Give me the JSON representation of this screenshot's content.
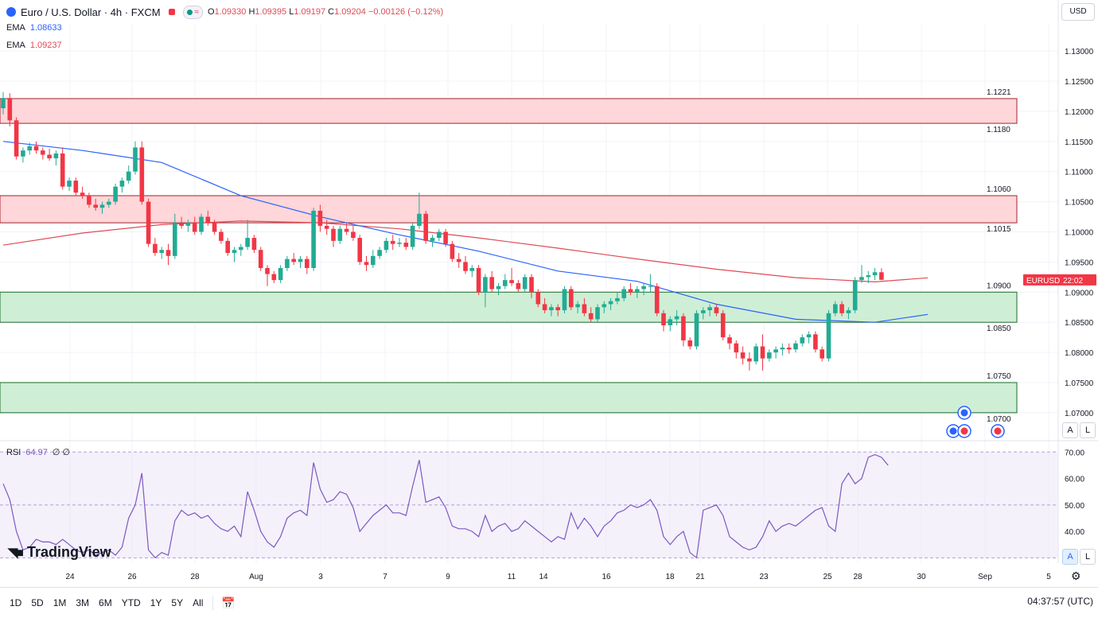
{
  "header": {
    "title": "Euro / U.S. Dollar · 4h · FXCM",
    "ohlc": [
      {
        "k": "O",
        "v": "1.09330"
      },
      {
        "k": "H",
        "v": "1.09395"
      },
      {
        "k": "L",
        "v": "1.09197"
      },
      {
        "k": "C",
        "v": "1.09204"
      }
    ],
    "change": "−0.00126 (−0.12%)",
    "currency": "USD",
    "pill_icon": "wave-icon"
  },
  "indicators": [
    {
      "name": "EMA",
      "value": "1.08633",
      "color": "#2962ff"
    },
    {
      "name": "EMA",
      "value": "1.09237",
      "color": "#e04a55"
    }
  ],
  "rsi": {
    "label": "RSI",
    "value": "64.97",
    "extra": "∅ ∅",
    "color": "#7e57c2"
  },
  "price_tag": {
    "symbol": "EURUSD",
    "time": "22:02",
    "price": 1.09204
  },
  "levels": [
    {
      "label": "1.1221",
      "value": 1.1221
    },
    {
      "label": "1.1180",
      "value": 1.118
    },
    {
      "label": "1.1060",
      "value": 1.106
    },
    {
      "label": "1.1015",
      "value": 1.1015
    },
    {
      "label": "1.0900",
      "value": 1.09
    },
    {
      "label": "1.0850",
      "value": 1.085
    },
    {
      "label": "1.0750",
      "value": 1.075
    },
    {
      "label": "1.0700",
      "value": 1.07
    }
  ],
  "zones": [
    {
      "low": 1.118,
      "high": 1.1221,
      "kind": "resistance"
    },
    {
      "low": 1.1015,
      "high": 1.106,
      "kind": "resistance"
    },
    {
      "low": 1.085,
      "high": 1.09,
      "kind": "support"
    },
    {
      "low": 1.07,
      "high": 1.075,
      "kind": "support"
    }
  ],
  "colors": {
    "up": "#22ab94",
    "down": "#f23645",
    "ema_fast": "#2962ff",
    "ema_slow": "#e04a55",
    "res_fill": "#ffd6d9",
    "sup_fill": "#cfeed6",
    "rsi": "#7e57c2"
  },
  "bottom_bar": {
    "ranges": [
      "1D",
      "5D",
      "1M",
      "3M",
      "6M",
      "YTD",
      "1Y",
      "5Y",
      "All"
    ],
    "clock": "04:37:57 (UTC)"
  },
  "brand": "TradingView",
  "chart_data": {
    "type": "candlestick",
    "timeframe": "4h",
    "y_ticks": [
      1.07,
      1.075,
      1.08,
      1.085,
      1.09,
      1.095,
      1.1,
      1.105,
      1.11,
      1.115,
      1.12,
      1.125,
      1.13
    ],
    "y_tick_labels": [
      "1.07000",
      "1.07500",
      "1.08000",
      "1.08500",
      "1.09000",
      "1.09500",
      "1.10000",
      "1.10500",
      "1.11000",
      "1.11500",
      "1.12000",
      "1.12500",
      "1.13000"
    ],
    "ylim": [
      1.0655,
      1.1345
    ],
    "x_tick_labels": [
      "24",
      "26",
      "28",
      "Aug",
      "3",
      "7",
      "9",
      "11",
      "14",
      "16",
      "18",
      "21",
      "23",
      "25",
      "28",
      "30",
      "Sep",
      "5"
    ],
    "candles": [
      [
        1.1205,
        1.1232,
        1.1195,
        1.1222
      ],
      [
        1.1222,
        1.123,
        1.1175,
        1.1185
      ],
      [
        1.1185,
        1.119,
        1.112,
        1.1125
      ],
      [
        1.1125,
        1.114,
        1.1115,
        1.1135
      ],
      [
        1.1135,
        1.1148,
        1.1128,
        1.1142
      ],
      [
        1.1142,
        1.115,
        1.113,
        1.1135
      ],
      [
        1.1135,
        1.114,
        1.112,
        1.1128
      ],
      [
        1.1128,
        1.1138,
        1.1118,
        1.1122
      ],
      [
        1.1122,
        1.1135,
        1.111,
        1.113
      ],
      [
        1.113,
        1.114,
        1.107,
        1.1075
      ],
      [
        1.1075,
        1.109,
        1.1068,
        1.1085
      ],
      [
        1.1085,
        1.109,
        1.106,
        1.1065
      ],
      [
        1.1065,
        1.1075,
        1.1055,
        1.106
      ],
      [
        1.106,
        1.1065,
        1.104,
        1.1045
      ],
      [
        1.1045,
        1.1055,
        1.1035,
        1.104
      ],
      [
        1.104,
        1.105,
        1.103,
        1.1045
      ],
      [
        1.1045,
        1.1055,
        1.104,
        1.105
      ],
      [
        1.105,
        1.108,
        1.1045,
        1.1075
      ],
      [
        1.1075,
        1.109,
        1.1065,
        1.1085
      ],
      [
        1.1085,
        1.111,
        1.108,
        1.11
      ],
      [
        1.11,
        1.115,
        1.1095,
        1.114
      ],
      [
        1.114,
        1.115,
        1.1045,
        1.105
      ],
      [
        1.105,
        1.1055,
        1.0975,
        1.098
      ],
      [
        1.098,
        1.099,
        1.096,
        1.0965
      ],
      [
        1.0965,
        1.0975,
        1.0955,
        1.097
      ],
      [
        1.097,
        1.098,
        1.0945,
        1.096
      ],
      [
        1.096,
        1.103,
        1.0955,
        1.1015
      ],
      [
        1.1015,
        1.1025,
        1.1005,
        1.101
      ],
      [
        1.101,
        1.102,
        1.1,
        1.1015
      ],
      [
        1.1015,
        1.1025,
        1.0995,
        1.1
      ],
      [
        1.1,
        1.103,
        1.0995,
        1.1025
      ],
      [
        1.1025,
        1.1035,
        1.101,
        1.1015
      ],
      [
        1.1015,
        1.102,
        1.0995,
        1.1
      ],
      [
        1.1,
        1.1005,
        1.098,
        1.0985
      ],
      [
        1.0985,
        1.099,
        1.096,
        1.0965
      ],
      [
        1.0965,
        1.0975,
        1.095,
        1.097
      ],
      [
        1.097,
        1.098,
        1.096,
        1.0975
      ],
      [
        1.0975,
        1.102,
        1.097,
        1.099
      ],
      [
        1.099,
        1.0995,
        1.0965,
        1.097
      ],
      [
        1.097,
        1.0975,
        1.0935,
        1.094
      ],
      [
        1.094,
        1.0945,
        1.091,
        1.093
      ],
      [
        1.093,
        1.0935,
        1.0915,
        1.092
      ],
      [
        1.092,
        1.0945,
        1.0915,
        1.094
      ],
      [
        1.094,
        1.096,
        1.0935,
        1.0955
      ],
      [
        1.0955,
        1.0965,
        1.0945,
        1.095
      ],
      [
        1.095,
        1.096,
        1.094,
        1.0955
      ],
      [
        1.0955,
        1.096,
        1.093,
        1.094
      ],
      [
        1.094,
        1.104,
        1.0935,
        1.1035
      ],
      [
        1.1035,
        1.1045,
        1.1,
        1.101
      ],
      [
        1.101,
        1.102,
        1.0995,
        1.1005
      ],
      [
        1.1005,
        1.101,
        1.0975,
        1.0985
      ],
      [
        1.0985,
        1.101,
        1.098,
        1.1005
      ],
      [
        1.1005,
        1.1015,
        1.0995,
        1.1
      ],
      [
        1.1,
        1.101,
        1.0985,
        1.099
      ],
      [
        1.099,
        1.0995,
        1.0945,
        1.095
      ],
      [
        1.095,
        1.096,
        1.0935,
        1.0945
      ],
      [
        1.0945,
        1.097,
        1.094,
        1.096
      ],
      [
        1.096,
        1.0975,
        1.0955,
        1.097
      ],
      [
        1.097,
        1.099,
        1.0965,
        1.0985
      ],
      [
        1.0985,
        1.0995,
        1.097,
        1.098
      ],
      [
        1.098,
        1.099,
        1.0975,
        1.0982
      ],
      [
        1.0982,
        1.099,
        1.097,
        1.0975
      ],
      [
        1.0975,
        1.1015,
        1.097,
        1.101
      ],
      [
        1.101,
        1.1065,
        1.1005,
        1.103
      ],
      [
        1.103,
        1.1035,
        1.098,
        1.0985
      ],
      [
        1.0985,
        1.0995,
        1.0975,
        1.099
      ],
      [
        1.099,
        1.1005,
        1.0985,
        1.1
      ],
      [
        1.1,
        1.1005,
        1.0975,
        1.098
      ],
      [
        1.098,
        1.0985,
        1.095,
        1.0955
      ],
      [
        1.0955,
        1.0965,
        1.094,
        1.095
      ],
      [
        1.095,
        1.096,
        1.093,
        1.0935
      ],
      [
        1.0935,
        1.0945,
        1.0925,
        1.094
      ],
      [
        1.094,
        1.0945,
        1.0895,
        1.09
      ],
      [
        1.09,
        1.093,
        1.0875,
        1.0925
      ],
      [
        1.0925,
        1.0935,
        1.09,
        1.0905
      ],
      [
        1.0905,
        1.0915,
        1.0895,
        1.091
      ],
      [
        1.091,
        1.093,
        1.0905,
        1.092
      ],
      [
        1.092,
        1.094,
        1.091,
        1.0915
      ],
      [
        1.0915,
        1.092,
        1.09,
        1.0905
      ],
      [
        1.0905,
        1.093,
        1.09,
        1.0925
      ],
      [
        1.0925,
        1.093,
        1.089,
        1.09
      ],
      [
        1.09,
        1.0905,
        1.0875,
        1.088
      ],
      [
        1.088,
        1.089,
        1.0865,
        1.087
      ],
      [
        1.087,
        1.088,
        1.086,
        1.0875
      ],
      [
        1.0875,
        1.088,
        1.086,
        1.087
      ],
      [
        1.087,
        1.091,
        1.0865,
        1.0905
      ],
      [
        1.0905,
        1.091,
        1.087,
        1.0875
      ],
      [
        1.0875,
        1.0885,
        1.0865,
        1.088
      ],
      [
        1.088,
        1.089,
        1.086,
        1.0865
      ],
      [
        1.0865,
        1.0875,
        1.085,
        1.0855
      ],
      [
        1.0855,
        1.088,
        1.085,
        1.0875
      ],
      [
        1.0875,
        1.0885,
        1.0865,
        1.088
      ],
      [
        1.088,
        1.089,
        1.087,
        1.0885
      ],
      [
        1.0885,
        1.09,
        1.088,
        1.089
      ],
      [
        1.089,
        1.091,
        1.0885,
        1.0905
      ],
      [
        1.0905,
        1.0915,
        1.0895,
        1.09
      ],
      [
        1.09,
        1.091,
        1.089,
        1.0905
      ],
      [
        1.0905,
        1.0915,
        1.0895,
        1.091
      ],
      [
        1.091,
        1.093,
        1.09,
        1.091
      ],
      [
        1.091,
        1.0915,
        1.086,
        1.0865
      ],
      [
        1.0865,
        1.087,
        1.0835,
        1.0845
      ],
      [
        1.0845,
        1.086,
        1.0835,
        1.0855
      ],
      [
        1.0855,
        1.087,
        1.0845,
        1.086
      ],
      [
        1.086,
        1.0865,
        1.081,
        1.082
      ],
      [
        1.082,
        1.0825,
        1.0805,
        1.081
      ],
      [
        1.081,
        1.087,
        1.0805,
        1.0865
      ],
      [
        1.0865,
        1.0875,
        1.0855,
        1.087
      ],
      [
        1.087,
        1.088,
        1.086,
        1.0875
      ],
      [
        1.0875,
        1.088,
        1.086,
        1.0865
      ],
      [
        1.0865,
        1.087,
        1.082,
        1.0825
      ],
      [
        1.0825,
        1.083,
        1.0805,
        1.0815
      ],
      [
        1.0815,
        1.082,
        1.079,
        1.08
      ],
      [
        1.08,
        1.081,
        1.078,
        1.079
      ],
      [
        1.079,
        1.08,
        1.077,
        1.0785
      ],
      [
        1.0785,
        1.0815,
        1.078,
        1.081
      ],
      [
        1.081,
        1.083,
        1.077,
        1.079
      ],
      [
        1.079,
        1.0805,
        1.0785,
        1.08
      ],
      [
        1.08,
        1.081,
        1.079,
        1.0805
      ],
      [
        1.0805,
        1.0815,
        1.0795,
        1.0808
      ],
      [
        1.0808,
        1.0815,
        1.0798,
        1.0805
      ],
      [
        1.0805,
        1.082,
        1.08,
        1.0815
      ],
      [
        1.0815,
        1.083,
        1.081,
        1.0825
      ],
      [
        1.0825,
        1.0835,
        1.0815,
        1.083
      ],
      [
        1.083,
        1.0835,
        1.08,
        1.0805
      ],
      [
        1.0805,
        1.081,
        1.0785,
        1.079
      ],
      [
        1.079,
        1.087,
        1.0785,
        1.0865
      ],
      [
        1.0865,
        1.0885,
        1.086,
        1.088
      ],
      [
        1.088,
        1.0885,
        1.086,
        1.0865
      ],
      [
        1.0865,
        1.0875,
        1.0855,
        1.087
      ],
      [
        1.087,
        1.0925,
        1.0865,
        1.092
      ],
      [
        1.092,
        1.0945,
        1.0915,
        1.0925
      ],
      [
        1.0925,
        1.0935,
        1.0915,
        1.0928
      ],
      [
        1.0928,
        1.094,
        1.092,
        1.0933
      ],
      [
        1.0933,
        1.09395,
        1.09197,
        1.09204
      ]
    ],
    "ema_fast": [
      [
        0,
        1.115
      ],
      [
        12,
        1.1135
      ],
      [
        24,
        1.1115
      ],
      [
        36,
        1.106
      ],
      [
        48,
        1.1025
      ],
      [
        60,
        1.0995
      ],
      [
        72,
        1.0968
      ],
      [
        84,
        1.0935
      ],
      [
        96,
        1.0918
      ],
      [
        108,
        1.088
      ],
      [
        120,
        1.0855
      ],
      [
        132,
        1.085
      ],
      [
        140,
        1.0863
      ]
    ],
    "ema_slow": [
      [
        0,
        1.0978
      ],
      [
        12,
        1.0998
      ],
      [
        24,
        1.1012
      ],
      [
        36,
        1.1018
      ],
      [
        48,
        1.1015
      ],
      [
        60,
        1.1005
      ],
      [
        72,
        1.099
      ],
      [
        84,
        1.0973
      ],
      [
        96,
        1.0955
      ],
      [
        108,
        1.0938
      ],
      [
        120,
        1.0924
      ],
      [
        132,
        1.0917
      ],
      [
        140,
        1.09237
      ]
    ],
    "rsi_ticks": [
      40,
      50,
      60,
      70
    ],
    "rsi_ylim": [
      28,
      74
    ],
    "rsi_values": [
      58,
      52,
      40,
      33,
      34,
      37,
      36,
      36,
      35,
      37,
      35,
      33,
      32,
      33,
      31,
      32,
      33,
      31,
      34,
      45,
      50,
      62,
      33,
      30,
      32,
      31,
      44,
      48,
      46,
      47,
      45,
      46,
      43,
      41,
      40,
      42,
      38,
      55,
      48,
      40,
      36,
      34,
      38,
      45,
      47,
      48,
      46,
      66,
      56,
      51,
      52,
      55,
      54,
      49,
      40,
      43,
      46,
      48,
      50,
      47,
      47,
      46,
      57,
      67,
      51,
      52,
      53,
      49,
      42,
      41,
      41,
      40,
      38,
      46,
      40,
      42,
      43,
      40,
      41,
      44,
      42,
      40,
      38,
      36,
      38,
      37,
      47,
      41,
      45,
      42,
      38,
      42,
      44,
      47,
      48,
      50,
      49,
      50,
      52,
      48,
      38,
      35,
      38,
      40,
      32,
      30,
      48,
      49,
      50,
      46,
      38,
      36,
      34,
      33,
      34,
      38,
      44,
      40,
      42,
      43,
      42,
      44,
      46,
      48,
      49,
      42,
      40,
      58,
      62,
      58,
      60,
      68,
      69,
      68,
      64.97
    ]
  }
}
